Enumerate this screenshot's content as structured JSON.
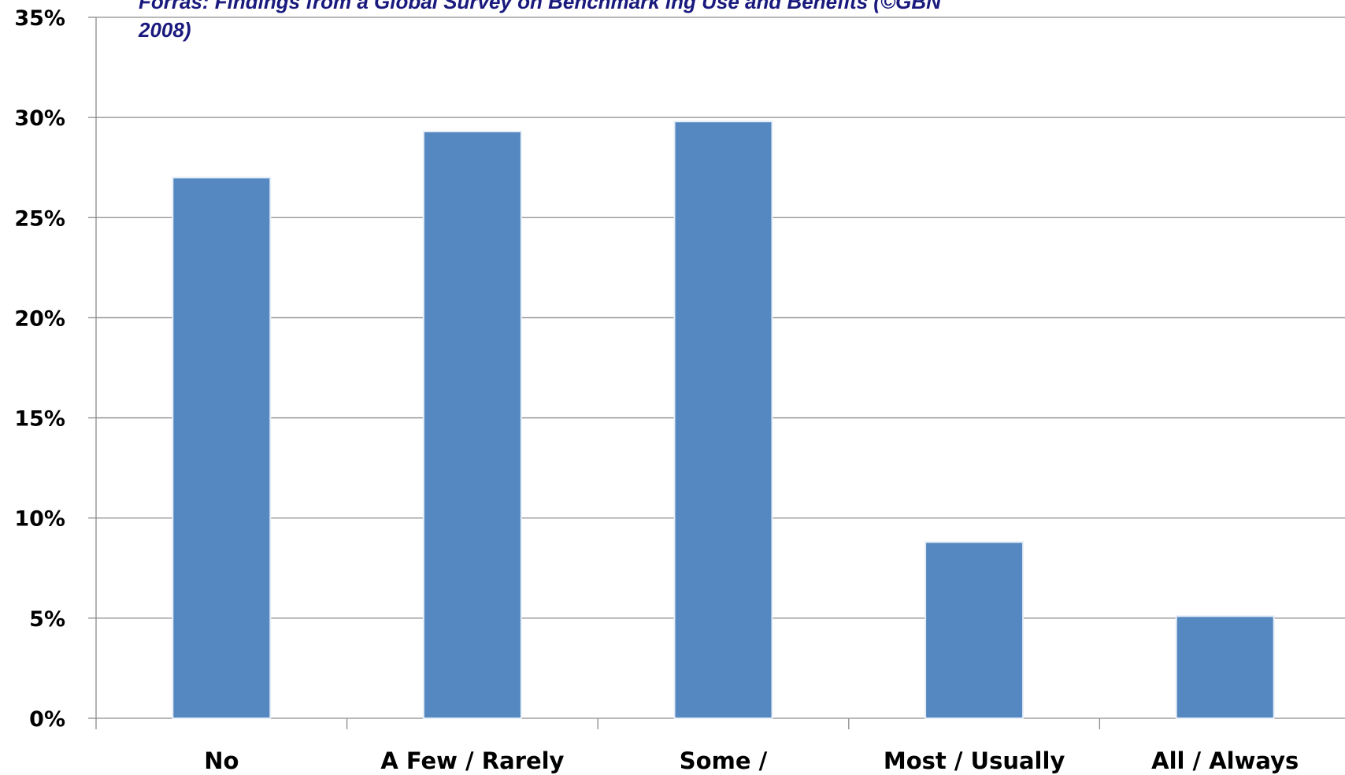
{
  "subtitle_line1": "Forras: Findings from a Global Survey on Benchmark ing Use and Benefits (©GBN",
  "subtitle_line2": "2008)",
  "chart_data": {
    "type": "bar",
    "categories": [
      "No",
      "A Few / Rarely",
      "Some /",
      "Most / Usually",
      "All / Always"
    ],
    "values": [
      27.0,
      29.3,
      29.8,
      8.8,
      5.1
    ],
    "yticks": [
      "0%",
      "5%",
      "10%",
      "15%",
      "20%",
      "25%",
      "30%",
      "35%"
    ],
    "ylim": [
      0,
      35
    ],
    "grid": true,
    "bar_color": "#5588c1"
  }
}
